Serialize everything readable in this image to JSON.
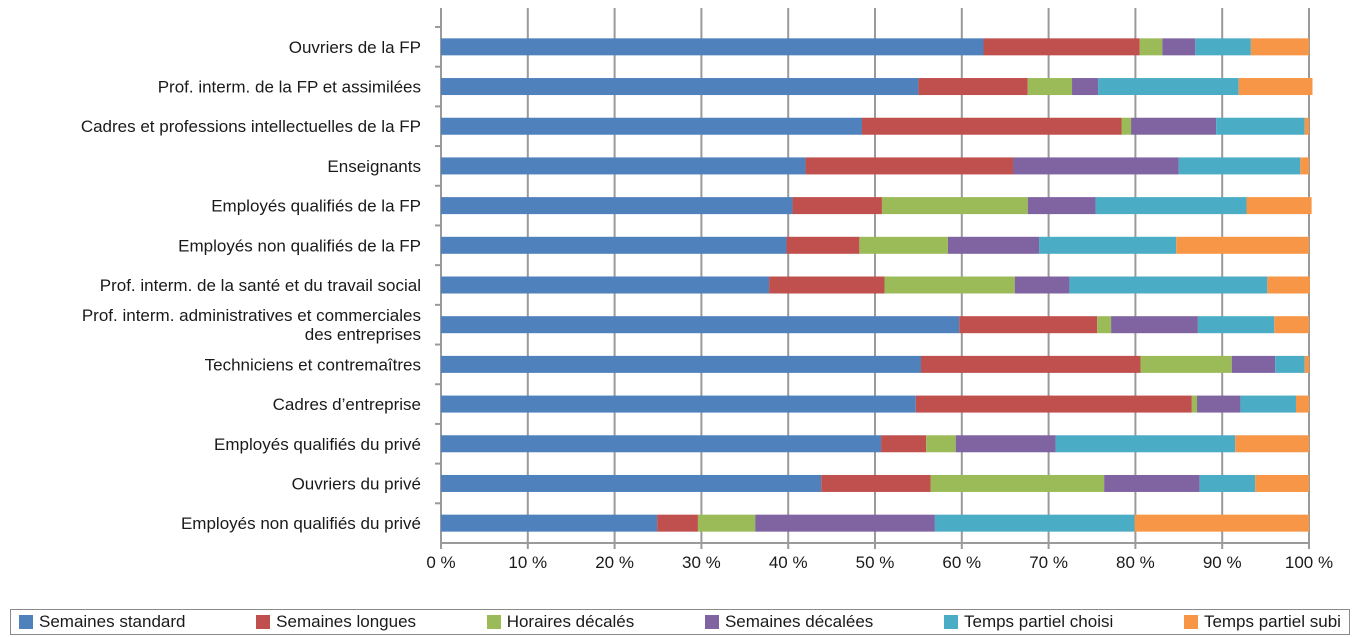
{
  "chart_data": {
    "type": "bar",
    "orientation": "horizontal",
    "stacked": true,
    "categories": [
      "Ouvriers de la FP",
      "Prof. interm. de la FP et assimilées",
      "Cadres et professions intellectuelles de la FP",
      "Enseignants",
      "Employés qualifiés de la FP",
      "Employés non qualifiés de la FP",
      "Prof. interm. de la santé et du travail social",
      [
        "Prof. interm. administratives et commerciales",
        "des entreprises"
      ],
      "Techniciens et contremaîtres",
      "Cadres d’entreprise",
      "Employés qualifiés du privé",
      "Ouvriers du privé",
      "Employés non qualifiés du privé"
    ],
    "series": [
      {
        "name": "Semaines standard",
        "color": "#4f81bd",
        "values": [
          62.5,
          55,
          48.5,
          42,
          40.5,
          39.8,
          37.8,
          59.7,
          55.3,
          54.7,
          50.7,
          43.8,
          24.9
        ]
      },
      {
        "name": "Semaines longues",
        "color": "#c0504d",
        "values": [
          18,
          12.6,
          29.9,
          23.9,
          10.3,
          8.4,
          13.3,
          15.9,
          25.3,
          31.8,
          5.2,
          12.6,
          4.7
        ]
      },
      {
        "name": "Horaires décalés",
        "color": "#9bbb59",
        "values": [
          2.6,
          5.1,
          1.1,
          0,
          16.8,
          10.2,
          15,
          1.6,
          10.5,
          0.6,
          3.4,
          20,
          6.6
        ]
      },
      {
        "name": "Semaines décalées",
        "color": "#8064a2",
        "values": [
          3.8,
          3,
          9.8,
          19.1,
          7.8,
          10.5,
          6.3,
          10,
          5,
          5,
          11.5,
          11,
          20.7
        ]
      },
      {
        "name": "Temps partiel choisi",
        "color": "#4bacc6",
        "values": [
          6.4,
          16.2,
          10.2,
          14,
          17.4,
          15.8,
          22.8,
          8.8,
          3.4,
          6.4,
          20.7,
          6.4,
          23
        ]
      },
      {
        "name": "Temps partiel subi",
        "color": "#f79646",
        "values": [
          6.7,
          8.5,
          0.5,
          1,
          7.5,
          15.3,
          4.9,
          4,
          0.5,
          1.5,
          8.5,
          6.2,
          20.1
        ]
      }
    ],
    "xticks": [
      "0 %",
      "10 %",
      "20 %",
      "30 %",
      "40 %",
      "50 %",
      "60 %",
      "70 %",
      "80 %",
      "90 %",
      "100 %"
    ],
    "xlim": [
      0,
      100
    ],
    "grid": true,
    "legend_position": "bottom"
  }
}
